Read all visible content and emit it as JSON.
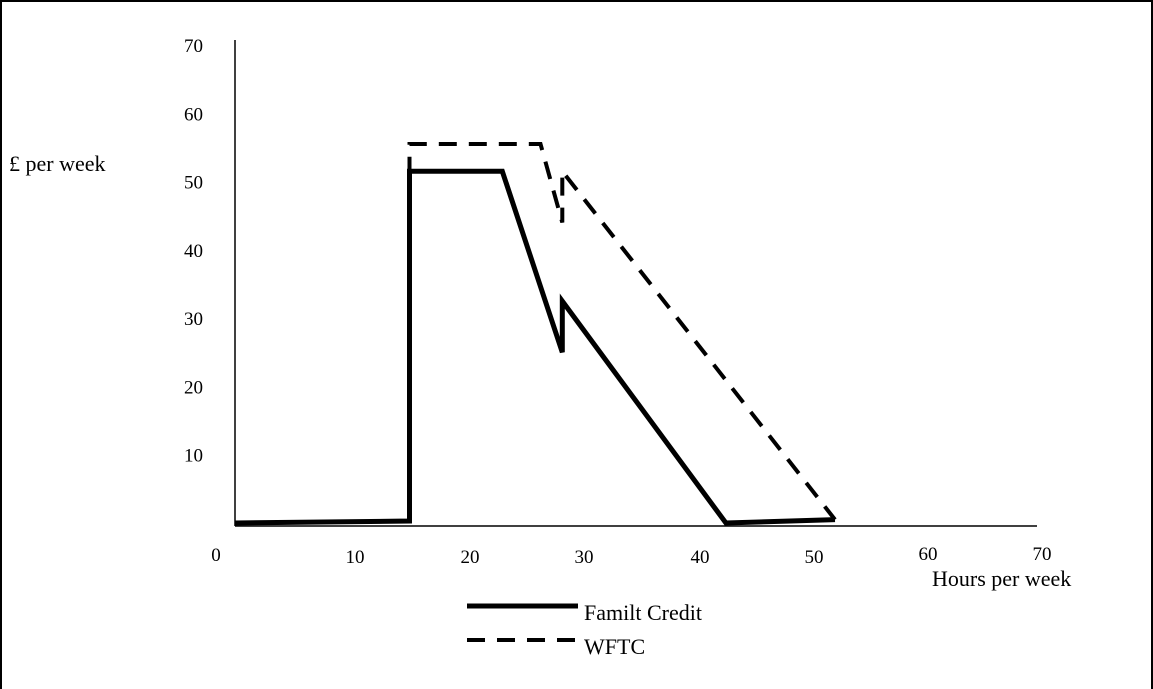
{
  "chart_data": {
    "type": "line",
    "ylabel": "£ per week",
    "xlabel": "Hours per week",
    "xlim": [
      0,
      70
    ],
    "ylim": [
      0,
      70
    ],
    "x_ticks": [
      "0",
      "10",
      "20",
      "30",
      "40",
      "50",
      "60",
      "70"
    ],
    "y_ticks": [
      "10",
      "20",
      "30",
      "40",
      "50",
      "60",
      "70"
    ],
    "grid": false,
    "legend_position": "bottom",
    "series": [
      {
        "name": "Familt Credit",
        "style": "solid",
        "color": "#000000",
        "points": [
          [
            0,
            0
          ],
          [
            16,
            0.3
          ],
          [
            16,
            51.5
          ],
          [
            24.5,
            51.5
          ],
          [
            30,
            25
          ],
          [
            30,
            32.5
          ],
          [
            45,
            0
          ],
          [
            55,
            0.5
          ]
        ]
      },
      {
        "name": "WFTC",
        "style": "dashed",
        "color": "#000000",
        "points": [
          [
            16,
            51
          ],
          [
            16,
            55.5
          ],
          [
            28,
            55.5
          ],
          [
            30,
            44
          ],
          [
            30,
            51.5
          ],
          [
            55,
            0.5
          ]
        ]
      }
    ]
  }
}
